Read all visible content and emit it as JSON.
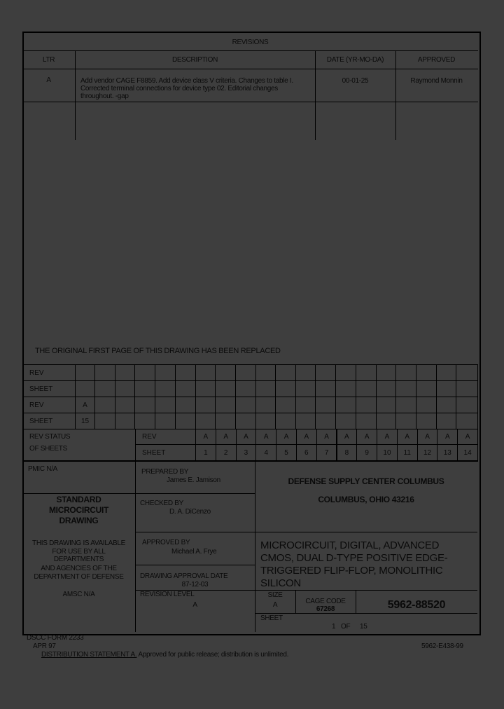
{
  "revisions": {
    "title": "REVISIONS",
    "headers": [
      "LTR",
      "DESCRIPTION",
      "DATE (YR-MO-DA)",
      "APPROVED"
    ],
    "rows": [
      {
        "ltr": "A",
        "description": [
          "Add vendor CAGE F8859.  Add device class V criteria.  Changes to table I.",
          "Corrected terminal connections for device type 02.  Editorial changes",
          "throughout.  -gap"
        ],
        "date": "00-01-25",
        "approved": "Raymond Monnin"
      }
    ]
  },
  "replaced_notice": "THE ORIGINAL FIRST PAGE OF THIS DRAWING HAS BEEN REPLACED",
  "rev_grid": {
    "rows": [
      {
        "label": "REV",
        "values": [
          "",
          ""
        ]
      },
      {
        "label": "SHEET",
        "values": [
          "",
          ""
        ]
      },
      {
        "label": "REV",
        "values": [
          "A",
          ""
        ]
      },
      {
        "label": "SHEET",
        "values": [
          "15",
          ""
        ]
      }
    ]
  },
  "rev_status": {
    "label_line1": "REV STATUS",
    "label_line2": "OF SHEETS",
    "rev_label": "REV",
    "sheet_label": "SHEET",
    "revs": [
      "A",
      "A",
      "A",
      "A",
      "A",
      "A",
      "A",
      "A",
      "A",
      "A",
      "A",
      "A",
      "A",
      "A"
    ],
    "sheets": [
      "1",
      "2",
      "3",
      "4",
      "5",
      "6",
      "7",
      "8",
      "9",
      "10",
      "11",
      "12",
      "13",
      "14"
    ]
  },
  "title_block": {
    "pmic": "PMIC N/A",
    "standard": [
      "STANDARD",
      "MICROCIRCUIT",
      "DRAWING"
    ],
    "availability": [
      "THIS DRAWING IS AVAILABLE",
      "FOR USE BY ALL",
      "DEPARTMENTS",
      "AND AGENCIES OF THE",
      "DEPARTMENT OF DEFENSE"
    ],
    "amsc": "AMSC N/A",
    "prepared_label": "PREPARED BY",
    "prepared_by": "James E. Jamison",
    "checked_label": "CHECKED BY",
    "checked_by": "D. A. DiCenzo",
    "approved_label": "APPROVED BY",
    "approved_by": "Michael A. Frye",
    "approval_date_label": "DRAWING APPROVAL DATE",
    "approval_date": "87-12-03",
    "revision_level_label": "REVISION LEVEL",
    "revision_level": "A",
    "agency": "DEFENSE SUPPLY CENTER COLUMBUS",
    "agency_address": "COLUMBUS, OHIO  43216",
    "title": [
      "MICROCIRCUIT, DIGITAL, ADVANCED",
      "CMOS, DUAL D-TYPE POSITIVE EDGE-",
      "TRIGGERED FLIP-FLOP, MONOLITHIC",
      "SILICON"
    ],
    "size_label": "SIZE",
    "size": "A",
    "cage_label": "CAGE CODE",
    "cage": "67268",
    "drawing_number": "5962-88520",
    "sheet_label": "SHEET",
    "sheet_num": "1",
    "sheet_of": "OF",
    "sheet_total": "15"
  },
  "footer": {
    "form": "DSCC FORM 2233",
    "form_date": "APR 97",
    "doc_code": "5962-E438-99",
    "distribution_label": "DISTRIBUTION STATEMENT A.",
    "distribution_text": "  Approved for public release; distribution is unlimited."
  }
}
